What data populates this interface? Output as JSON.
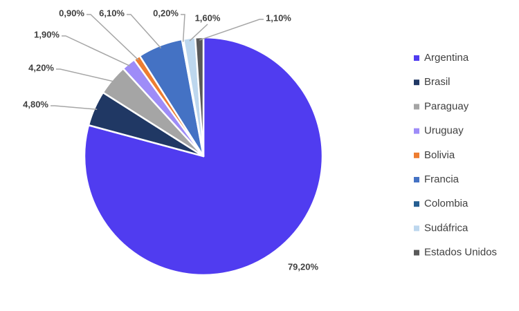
{
  "chart_data": {
    "type": "pie",
    "title": "",
    "legend_position": "right",
    "slices": [
      {
        "name": "Argentina",
        "value": 79.2,
        "label": "79,20%",
        "color": "#503cf0"
      },
      {
        "name": "Brasil",
        "value": 4.8,
        "label": "4,80%",
        "color": "#203864"
      },
      {
        "name": "Paraguay",
        "value": 4.2,
        "label": "4,20%",
        "color": "#a5a5a5"
      },
      {
        "name": "Uruguay",
        "value": 1.9,
        "label": "1,90%",
        "color": "#9e8cf8"
      },
      {
        "name": "Bolivia",
        "value": 0.9,
        "label": "0,90%",
        "color": "#ed7d31"
      },
      {
        "name": "Francia",
        "value": 6.1,
        "label": "6,10%",
        "color": "#4472c4"
      },
      {
        "name": "Colombia",
        "value": 0.2,
        "label": "0,20%",
        "color": "#255e91"
      },
      {
        "name": "Sudáfrica",
        "value": 1.6,
        "label": "1,60%",
        "color": "#bdd7ee"
      },
      {
        "name": "Estados Unidos",
        "value": 1.1,
        "label": "1,10%",
        "color": "#595959"
      }
    ]
  }
}
